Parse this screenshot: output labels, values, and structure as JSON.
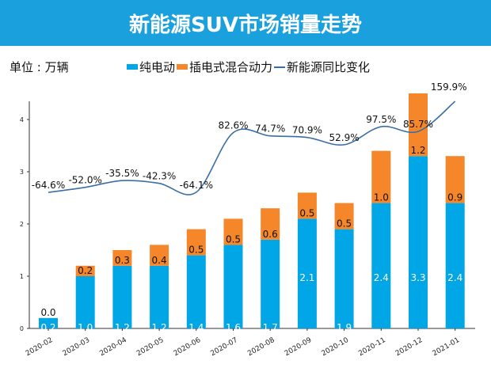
{
  "header": {
    "title": "新能源SUV市场销量走势"
  },
  "unit_label": "单位 : 万辆",
  "colors": {
    "header": "#1aa0dd",
    "bev": "#00a6e6",
    "phev": "#f5862a",
    "line": "#3b6ea5"
  },
  "chart_data": {
    "type": "bar",
    "stacked": true,
    "categories": [
      "2020-02",
      "2020-03",
      "2020-04",
      "2020-05",
      "2020-06",
      "2020-07",
      "2020-08",
      "2020-09",
      "2020-10",
      "2020-11",
      "2020-12",
      "2021-01"
    ],
    "series": [
      {
        "name": "纯电动",
        "type": "bar",
        "values": [
          0.2,
          1.0,
          1.2,
          1.2,
          1.4,
          1.6,
          1.7,
          2.1,
          1.9,
          2.4,
          3.3,
          2.4
        ],
        "labels": [
          "0.2",
          "1.0",
          "1.2",
          "1.2",
          "1.4",
          "1.6",
          "1.7",
          "2.1",
          "1.9",
          "2.4",
          "3.3",
          "2.4"
        ]
      },
      {
        "name": "插电式混合动力",
        "type": "bar",
        "values": [
          0.0,
          0.2,
          0.3,
          0.4,
          0.5,
          0.5,
          0.6,
          0.5,
          0.5,
          1.0,
          1.2,
          0.9
        ],
        "labels": [
          "0.0",
          "0.2",
          "0.3",
          "0.4",
          "0.5",
          "0.5",
          "0.6",
          "0.5",
          "0.5",
          "1.0",
          "1.2",
          "0.9"
        ]
      },
      {
        "name": "新能源同比变化",
        "type": "line",
        "axis": "secondary",
        "values": [
          -64.6,
          -52.0,
          -35.5,
          -42.3,
          -64.1,
          82.6,
          74.7,
          70.9,
          52.9,
          97.5,
          85.7,
          159.9
        ],
        "labels": [
          "-64.6%",
          "-52.0%",
          "-35.5%",
          "-42.3%",
          "-64.1%",
          "82.6%",
          "74.7%",
          "70.9%",
          "52.9%",
          "97.5%",
          "85.7%",
          "159.9%"
        ]
      }
    ],
    "yticks": [
      "0",
      "1",
      "2",
      "3",
      "4"
    ],
    "ylim": [
      0,
      4.6
    ],
    "legend": "top",
    "grid": false
  }
}
